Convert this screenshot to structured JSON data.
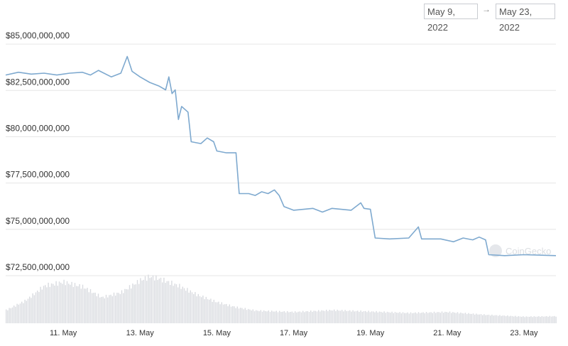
{
  "header": {
    "date_from": "May 9, 2022",
    "arrow": "→",
    "date_to": "May 23, 2022"
  },
  "watermark": "CoinGecko",
  "colors": {
    "line": "#7ea9cf",
    "volume": "#d9dbe0",
    "grid": "#e6e6e6"
  },
  "chart_data": {
    "type": "line",
    "title": "",
    "xlabel": "",
    "ylabel": "",
    "x_range": [
      "2022-05-09T12:00",
      "2022-05-23T20:00"
    ],
    "ylim": [
      72000000000,
      86000000000
    ],
    "yticks": [
      {
        "value": 72500000000,
        "label": "$72,500,000,000"
      },
      {
        "value": 75000000000,
        "label": "$75,000,000,000"
      },
      {
        "value": 77500000000,
        "label": "$77,500,000,000"
      },
      {
        "value": 80000000000,
        "label": "$80,000,000,000"
      },
      {
        "value": 82500000000,
        "label": "$82,500,000,000"
      },
      {
        "value": 85000000000,
        "label": "$85,000,000,000"
      }
    ],
    "xticks": [
      {
        "value": "2022-05-11",
        "label": "11. May"
      },
      {
        "value": "2022-05-13",
        "label": "13. May"
      },
      {
        "value": "2022-05-15",
        "label": "15. May"
      },
      {
        "value": "2022-05-17",
        "label": "17. May"
      },
      {
        "value": "2022-05-19",
        "label": "19. May"
      },
      {
        "value": "2022-05-21",
        "label": "21. May"
      },
      {
        "value": "2022-05-23",
        "label": "23. May"
      }
    ],
    "grid": true,
    "series": [
      {
        "points": [
          [
            "2022-05-09T12:00",
            83100000000
          ],
          [
            "2022-05-09T20:00",
            83250000000
          ],
          [
            "2022-05-10T04:00",
            83150000000
          ],
          [
            "2022-05-10T12:00",
            83200000000
          ],
          [
            "2022-05-10T20:00",
            83100000000
          ],
          [
            "2022-05-11T04:00",
            83200000000
          ],
          [
            "2022-05-11T12:00",
            83250000000
          ],
          [
            "2022-05-11T17:00",
            83100000000
          ],
          [
            "2022-05-11T22:00",
            83350000000
          ],
          [
            "2022-05-12T06:00",
            83000000000
          ],
          [
            "2022-05-12T12:00",
            83200000000
          ],
          [
            "2022-05-12T16:00",
            84100000000
          ],
          [
            "2022-05-12T19:00",
            83300000000
          ],
          [
            "2022-05-13T00:00",
            83000000000
          ],
          [
            "2022-05-13T06:00",
            82700000000
          ],
          [
            "2022-05-13T12:00",
            82500000000
          ],
          [
            "2022-05-13T16:00",
            82300000000
          ],
          [
            "2022-05-13T18:00",
            83000000000
          ],
          [
            "2022-05-13T20:00",
            82100000000
          ],
          [
            "2022-05-13T22:00",
            82300000000
          ],
          [
            "2022-05-14T00:00",
            80700000000
          ],
          [
            "2022-05-14T02:00",
            81400000000
          ],
          [
            "2022-05-14T06:00",
            81100000000
          ],
          [
            "2022-05-14T08:00",
            79500000000
          ],
          [
            "2022-05-14T14:00",
            79400000000
          ],
          [
            "2022-05-14T18:00",
            79700000000
          ],
          [
            "2022-05-14T22:00",
            79500000000
          ],
          [
            "2022-05-15T00:00",
            79000000000
          ],
          [
            "2022-05-15T06:00",
            78900000000
          ],
          [
            "2022-05-15T12:00",
            78900000000
          ],
          [
            "2022-05-15T14:00",
            76700000000
          ],
          [
            "2022-05-15T20:00",
            76700000000
          ],
          [
            "2022-05-16T00:00",
            76600000000
          ],
          [
            "2022-05-16T04:00",
            76800000000
          ],
          [
            "2022-05-16T08:00",
            76700000000
          ],
          [
            "2022-05-16T12:00",
            76900000000
          ],
          [
            "2022-05-16T15:00",
            76600000000
          ],
          [
            "2022-05-16T18:00",
            76000000000
          ],
          [
            "2022-05-17T00:00",
            75800000000
          ],
          [
            "2022-05-17T12:00",
            75900000000
          ],
          [
            "2022-05-17T18:00",
            75700000000
          ],
          [
            "2022-05-18T00:00",
            75900000000
          ],
          [
            "2022-05-18T12:00",
            75800000000
          ],
          [
            "2022-05-18T18:00",
            76200000000
          ],
          [
            "2022-05-18T20:00",
            75900000000
          ],
          [
            "2022-05-19T00:00",
            75850000000
          ],
          [
            "2022-05-19T03:00",
            74300000000
          ],
          [
            "2022-05-19T12:00",
            74250000000
          ],
          [
            "2022-05-20T00:00",
            74300000000
          ],
          [
            "2022-05-20T06:00",
            74900000000
          ],
          [
            "2022-05-20T08:00",
            74250000000
          ],
          [
            "2022-05-20T20:00",
            74250000000
          ],
          [
            "2022-05-21T04:00",
            74100000000
          ],
          [
            "2022-05-21T10:00",
            74300000000
          ],
          [
            "2022-05-21T16:00",
            74200000000
          ],
          [
            "2022-05-21T20:00",
            74350000000
          ],
          [
            "2022-05-22T00:00",
            74200000000
          ],
          [
            "2022-05-22T02:00",
            73400000000
          ],
          [
            "2022-05-22T12:00",
            73350000000
          ],
          [
            "2022-05-23T00:00",
            73400000000
          ],
          [
            "2022-05-23T20:00",
            73350000000
          ]
        ]
      }
    ],
    "volume": {
      "note_units": "relative",
      "points": [
        [
          "2022-05-09T12:00",
          0.28
        ],
        [
          "2022-05-10T00:00",
          0.48
        ],
        [
          "2022-05-10T12:00",
          0.8
        ],
        [
          "2022-05-11T00:00",
          0.88
        ],
        [
          "2022-05-11T12:00",
          0.78
        ],
        [
          "2022-05-12T00:00",
          0.55
        ],
        [
          "2022-05-12T12:00",
          0.66
        ],
        [
          "2022-05-13T00:00",
          0.92
        ],
        [
          "2022-05-13T06:00",
          1.0
        ],
        [
          "2022-05-13T12:00",
          0.95
        ],
        [
          "2022-05-14T00:00",
          0.8
        ],
        [
          "2022-05-14T12:00",
          0.6
        ],
        [
          "2022-05-15T00:00",
          0.45
        ],
        [
          "2022-05-15T12:00",
          0.34
        ],
        [
          "2022-05-16T00:00",
          0.27
        ],
        [
          "2022-05-17T00:00",
          0.24
        ],
        [
          "2022-05-18T00:00",
          0.28
        ],
        [
          "2022-05-19T00:00",
          0.25
        ],
        [
          "2022-05-20T00:00",
          0.22
        ],
        [
          "2022-05-21T00:00",
          0.24
        ],
        [
          "2022-05-22T00:00",
          0.18
        ],
        [
          "2022-05-23T00:00",
          0.14
        ],
        [
          "2022-05-23T20:00",
          0.15
        ]
      ]
    }
  }
}
